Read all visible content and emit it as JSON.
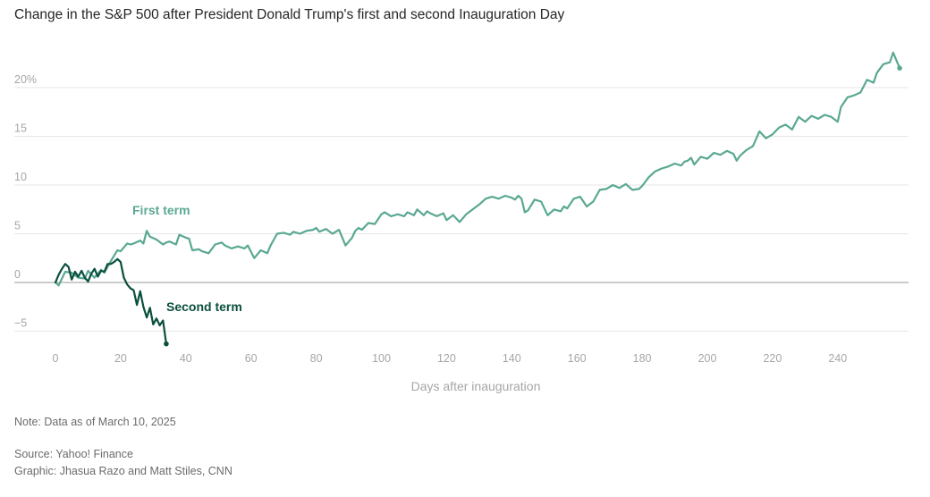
{
  "title": "Change in the S&P 500 after President Donald Trump's first and second Inauguration Day",
  "note": "Note: Data as of March 10, 2025",
  "source": "Source: Yahoo! Finance",
  "credit": "Graphic: Jhasua Razo and Matt Stiles, CNN",
  "chart_data": {
    "type": "line",
    "title": "Change in the S&P 500 after President Donald Trump's first and second Inauguration Day",
    "xlabel": "Days after inauguration",
    "ylabel": "",
    "xlim": [
      0,
      262
    ],
    "ylim": [
      -7,
      25
    ],
    "x_ticks": [
      0,
      20,
      40,
      60,
      80,
      100,
      120,
      140,
      160,
      180,
      200,
      220,
      240
    ],
    "y_ticks": [
      -5,
      0,
      5,
      10,
      15,
      20
    ],
    "y_tick_labels": [
      "−5",
      "0",
      "5",
      "10",
      "15",
      "20%"
    ],
    "grid": true,
    "series": [
      {
        "name": "First term",
        "color": "#5aa892",
        "x": [
          0,
          1,
          3,
          5,
          7,
          9,
          10,
          12,
          14,
          15,
          17,
          19,
          20,
          22,
          23,
          24,
          26,
          27,
          28,
          29,
          31,
          33,
          34,
          35,
          37,
          38,
          40,
          41,
          42,
          44,
          45,
          47,
          49,
          51,
          52,
          54,
          56,
          58,
          59,
          61,
          63,
          65,
          66,
          68,
          70,
          72,
          73,
          75,
          77,
          79,
          80,
          81,
          83,
          85,
          87,
          89,
          91,
          92,
          93,
          94,
          96,
          98,
          100,
          101,
          103,
          105,
          107,
          108,
          110,
          111,
          113,
          114,
          115,
          117,
          119,
          120,
          122,
          124,
          126,
          128,
          130,
          132,
          134,
          136,
          138,
          140,
          141,
          142,
          143,
          144,
          145,
          147,
          149,
          151,
          153,
          155,
          156,
          157,
          159,
          161,
          163,
          165,
          167,
          169,
          171,
          173,
          175,
          177,
          179,
          180,
          182,
          184,
          186,
          188,
          190,
          192,
          193,
          194,
          195,
          196,
          198,
          200,
          202,
          204,
          206,
          208,
          209,
          210,
          212,
          214,
          216,
          218,
          220,
          222,
          224,
          226,
          228,
          230,
          232,
          234,
          236,
          238,
          240,
          241,
          243,
          245,
          247,
          249,
          251,
          252,
          254,
          256,
          257,
          259
        ],
        "y": [
          0,
          -0.3,
          1.1,
          1.0,
          0.5,
          0.4,
          1.2,
          0.5,
          1.3,
          1.0,
          2.2,
          3.3,
          3.2,
          4.0,
          3.9,
          4.0,
          4.3,
          4.0,
          5.3,
          4.7,
          4.4,
          3.9,
          4.1,
          4.2,
          3.9,
          4.9,
          4.6,
          4.5,
          3.3,
          3.4,
          3.2,
          3.0,
          3.9,
          4.1,
          3.8,
          3.5,
          3.7,
          3.5,
          3.8,
          2.5,
          3.3,
          3.0,
          3.8,
          5.0,
          5.1,
          4.9,
          5.2,
          5.0,
          5.3,
          5.4,
          5.6,
          5.2,
          5.5,
          5.0,
          5.4,
          3.8,
          4.6,
          5.3,
          5.6,
          5.4,
          6.1,
          6.0,
          7.0,
          7.2,
          6.8,
          7.0,
          6.8,
          7.2,
          6.9,
          7.5,
          6.9,
          7.3,
          7.1,
          6.8,
          7.1,
          6.4,
          6.9,
          6.2,
          7.0,
          7.5,
          8.0,
          8.6,
          8.8,
          8.6,
          8.9,
          8.7,
          8.5,
          8.9,
          8.6,
          7.2,
          7.4,
          8.5,
          8.3,
          6.9,
          7.5,
          7.3,
          7.8,
          7.6,
          8.6,
          8.8,
          7.8,
          8.3,
          9.5,
          9.6,
          10.0,
          9.7,
          10.1,
          9.5,
          9.6,
          9.9,
          10.8,
          11.4,
          11.7,
          11.9,
          12.2,
          12.0,
          12.4,
          12.5,
          12.8,
          12.1,
          12.9,
          12.7,
          13.3,
          13.1,
          13.5,
          13.2,
          12.5,
          13.0,
          13.6,
          14.0,
          15.5,
          14.8,
          15.2,
          15.9,
          16.2,
          15.7,
          17.0,
          16.5,
          17.1,
          16.8,
          17.2,
          17.0,
          16.5,
          18.0,
          19.0,
          19.2,
          19.5,
          20.8,
          20.5,
          21.5,
          22.4,
          22.6,
          23.6,
          22.0
        ]
      },
      {
        "name": "Second term",
        "color": "#0b4f3e",
        "x": [
          0,
          1,
          2,
          3,
          4,
          5,
          6,
          7,
          8,
          9,
          10,
          11,
          12,
          13,
          14,
          15,
          16,
          17,
          18,
          19,
          20,
          21,
          22,
          23,
          24,
          25,
          26,
          27,
          28,
          29,
          30,
          31,
          32,
          33,
          34
        ],
        "y": [
          0,
          0.8,
          1.4,
          1.9,
          1.6,
          0.3,
          1.1,
          0.6,
          1.2,
          0.5,
          0.1,
          0.9,
          1.4,
          0.6,
          1.2,
          1.1,
          1.9,
          1.9,
          2.1,
          2.4,
          2.1,
          0.5,
          -0.2,
          -0.6,
          -0.8,
          -2.3,
          -0.9,
          -2.5,
          -3.6,
          -2.6,
          -4.3,
          -3.7,
          -4.4,
          -3.9,
          -6.3
        ]
      }
    ],
    "annotations": [
      {
        "text": "First term",
        "series": 0
      },
      {
        "text": "Second term",
        "series": 1
      }
    ]
  }
}
